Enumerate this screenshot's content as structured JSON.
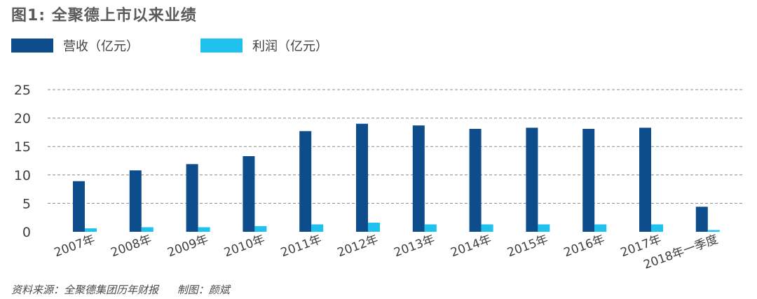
{
  "header": {
    "title": "图1: 全聚德上市以来业绩"
  },
  "footer": {
    "source": "资料来源：全聚德集团历年财报",
    "maker": "制图：颜斌"
  },
  "colors": {
    "revenue": "#0e4d8c",
    "profit": "#1fc1ef",
    "grid": "#8a8a8a",
    "text": "#404040"
  },
  "chart_data": {
    "type": "bar",
    "categories": [
      "2007年",
      "2008年",
      "2009年",
      "2010年",
      "2011年",
      "2012年",
      "2013年",
      "2014年",
      "2015年",
      "2016年",
      "2017年",
      "2018年一季度"
    ],
    "series": [
      {
        "name": "营收（亿元）",
        "values": [
          8.9,
          10.8,
          11.9,
          13.3,
          17.7,
          19.0,
          18.7,
          18.1,
          18.3,
          18.1,
          18.3,
          4.4
        ]
      },
      {
        "name": "利润（亿元）",
        "values": [
          0.6,
          0.8,
          0.8,
          1.0,
          1.3,
          1.6,
          1.3,
          1.3,
          1.3,
          1.3,
          1.3,
          0.3
        ]
      }
    ],
    "yticks": [
      0,
      5,
      10,
      15,
      20,
      25
    ],
    "ylim": [
      0,
      25
    ],
    "grid": true,
    "legend": "top-left"
  }
}
